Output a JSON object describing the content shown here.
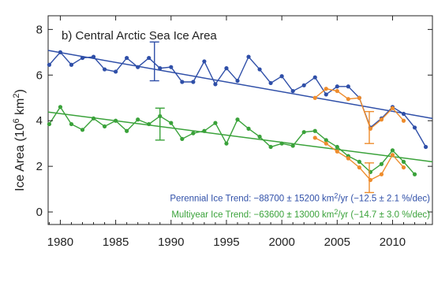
{
  "chart_data": {
    "type": "line",
    "title": "b) Central Arctic Sea Ice Area",
    "ylabel": "Ice Area (10",
    "ylabel_sup": "6",
    "ylabel_unit": " km",
    "ylabel_unit_sup": "2",
    "ylabel_close": ")",
    "xlim": [
      1978.9,
      2013.6
    ],
    "ylim": [
      -0.55,
      8.6
    ],
    "x_ticks": [
      1980,
      1985,
      1990,
      1995,
      2000,
      2005,
      2010
    ],
    "y_ticks": [
      0,
      2,
      4,
      6,
      8
    ],
    "series": [
      {
        "name": "Perennial",
        "color": "#2f4fa8",
        "x": [
          1979,
          1980,
          1981,
          1982,
          1983,
          1984,
          1985,
          1986,
          1987,
          1988,
          1989,
          1990,
          1991,
          1992,
          1993,
          1994,
          1995,
          1996,
          1997,
          1998,
          1999,
          2000,
          2001,
          2002,
          2003,
          2004,
          2005,
          2006,
          2007,
          2008,
          2009,
          2010,
          2011,
          2012,
          2013
        ],
        "values": [
          6.45,
          7.0,
          6.45,
          6.75,
          6.8,
          6.25,
          6.15,
          6.75,
          6.35,
          6.75,
          6.3,
          6.35,
          5.7,
          5.7,
          6.6,
          5.6,
          6.3,
          5.75,
          6.8,
          6.25,
          5.65,
          5.95,
          5.3,
          5.55,
          5.9,
          5.15,
          5.5,
          5.5,
          5.0,
          3.7,
          4.1,
          4.6,
          4.3,
          3.7,
          2.85
        ]
      },
      {
        "name": "Multiyear",
        "color": "#3aa23a",
        "x": [
          1979,
          1980,
          1981,
          1982,
          1983,
          1984,
          1985,
          1986,
          1987,
          1988,
          1989,
          1990,
          1991,
          1992,
          1993,
          1994,
          1995,
          1996,
          1997,
          1998,
          1999,
          2000,
          2001,
          2002,
          2003,
          2004,
          2005,
          2006,
          2007,
          2008,
          2009,
          2010,
          2011,
          2012
        ],
        "values": [
          3.85,
          4.6,
          3.85,
          3.6,
          4.1,
          3.75,
          4.0,
          3.55,
          4.05,
          3.85,
          4.2,
          3.9,
          3.2,
          3.45,
          3.55,
          3.9,
          3.0,
          4.05,
          3.65,
          3.3,
          2.85,
          3.0,
          2.9,
          3.5,
          3.55,
          3.15,
          2.85,
          2.45,
          2.2,
          1.75,
          2.1,
          2.7,
          2.2,
          1.65
        ]
      },
      {
        "name": "Perennial (orange)",
        "color": "#ee8c2c",
        "x": [
          2003,
          2004,
          2005,
          2006,
          2007,
          2008,
          2009,
          2010,
          2011
        ],
        "values": [
          5.0,
          5.4,
          5.3,
          4.95,
          5.0,
          3.65,
          4.05,
          4.55,
          4.0
        ]
      },
      {
        "name": "Multiyear (orange)",
        "color": "#ee8c2c",
        "x": [
          2003,
          2004,
          2005,
          2006,
          2007,
          2008,
          2009,
          2010,
          2011
        ],
        "values": [
          3.25,
          3.0,
          2.65,
          2.35,
          1.95,
          1.4,
          1.65,
          2.5,
          1.95
        ]
      }
    ],
    "trend_lines": [
      {
        "color": "#2f4fa8",
        "x": [
          1978.9,
          2013.6
        ],
        "y": [
          7.08,
          4.1
        ]
      },
      {
        "color": "#3aa23a",
        "x": [
          1978.9,
          2013.6
        ],
        "y": [
          4.38,
          2.2
        ]
      }
    ],
    "error_bars": [
      {
        "color": "#2f4fa8",
        "x": 1988.5,
        "low": 5.75,
        "high": 7.45
      },
      {
        "color": "#3aa23a",
        "x": 1989.0,
        "low": 3.15,
        "high": 4.55
      },
      {
        "color": "#ee8c2c",
        "x": 2007.9,
        "low": 3.0,
        "high": 4.4
      },
      {
        "color": "#ee8c2c",
        "x": 2007.9,
        "low": 0.85,
        "high": 2.15
      }
    ],
    "annotations": [
      {
        "id": "perennial",
        "color": "#2f4fa8",
        "lead": "Perennial Ice Trend: −88700 ± 15200 km",
        "sup": "2",
        "mid": "/yr (−12.5 ± 2.1 %/dec)",
        "y": 0.6
      },
      {
        "id": "multiyear",
        "color": "#3aa23a",
        "lead": "Multiyear Ice Trend: −63600 ± 13000 km",
        "sup": "2",
        "mid": "/yr (−14.7 ± 3.0 %/dec)",
        "y": -0.1
      }
    ]
  }
}
